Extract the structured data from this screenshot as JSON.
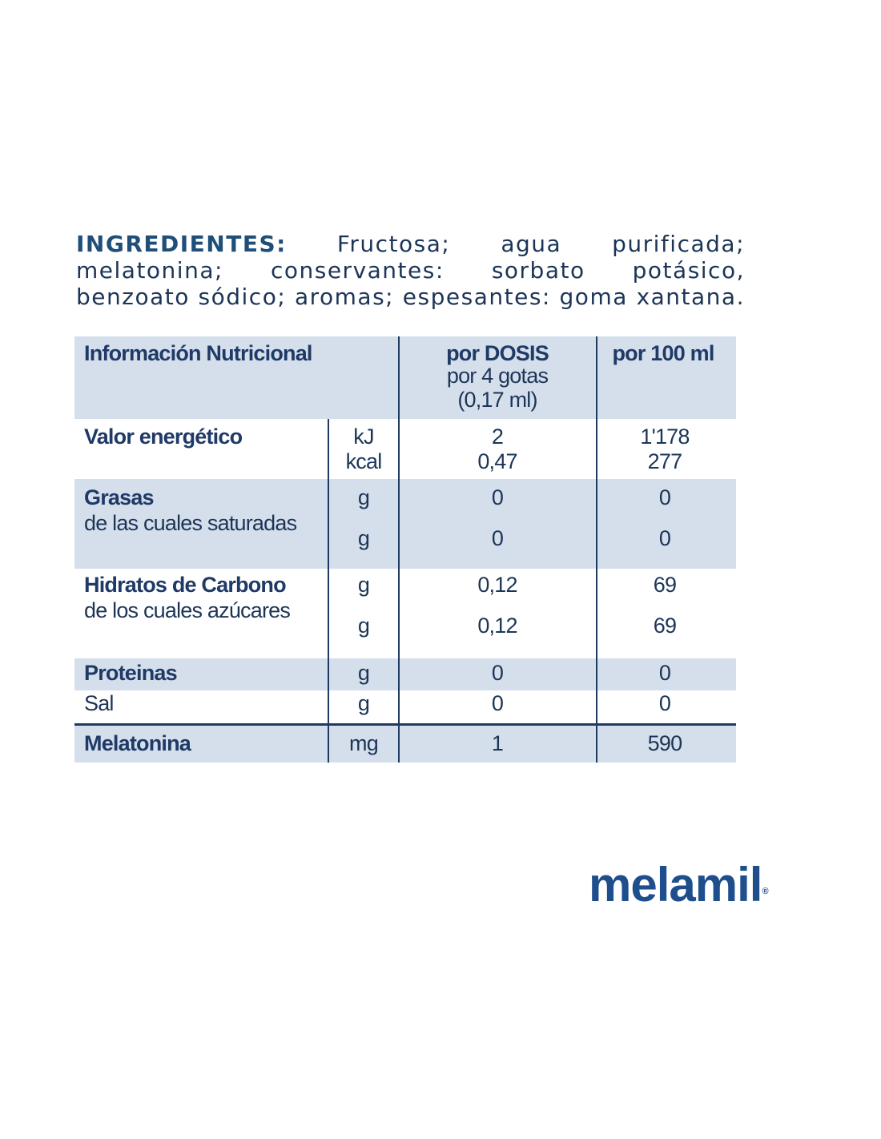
{
  "ingredients": {
    "label": "INGREDIENTES:",
    "lines": [
      "Fructosa; agua purificada;",
      "melatonina; conservantes: sorbato potásico,",
      "benzoato sódico; aromas; espesantes: goma xantana."
    ]
  },
  "table": {
    "header": {
      "title": "Información Nutricional",
      "dose": [
        "por DOSIS",
        "por 4 gotas",
        "(0,17 ml)"
      ],
      "per100": "por 100 ml"
    },
    "rows": [
      {
        "name": "Valor energético",
        "units": [
          "kJ",
          "kcal"
        ],
        "dose": [
          "2",
          "0,47"
        ],
        "per100": [
          "1'178",
          "277"
        ]
      },
      {
        "name": "Grasas",
        "sub": "de las cuales saturadas",
        "units": [
          "g",
          "g"
        ],
        "dose": [
          "0",
          "0"
        ],
        "per100": [
          "0",
          "0"
        ]
      },
      {
        "name": "Hidratos de Carbono",
        "sub": "de los cuales azúcares",
        "units": [
          "g",
          "g"
        ],
        "dose": [
          "0,12",
          "0,12"
        ],
        "per100": [
          "69",
          "69"
        ]
      },
      {
        "name": "Proteinas",
        "units": [
          "g"
        ],
        "dose": [
          "0"
        ],
        "per100": [
          "0"
        ]
      },
      {
        "name": "Sal",
        "units": [
          "g"
        ],
        "dose": [
          "0"
        ],
        "per100": [
          "0"
        ]
      },
      {
        "name": "Melatonina",
        "units": [
          "mg"
        ],
        "dose": [
          "1"
        ],
        "per100": [
          "590"
        ]
      }
    ]
  },
  "brand": {
    "name": "melamil",
    "mark": "®"
  }
}
